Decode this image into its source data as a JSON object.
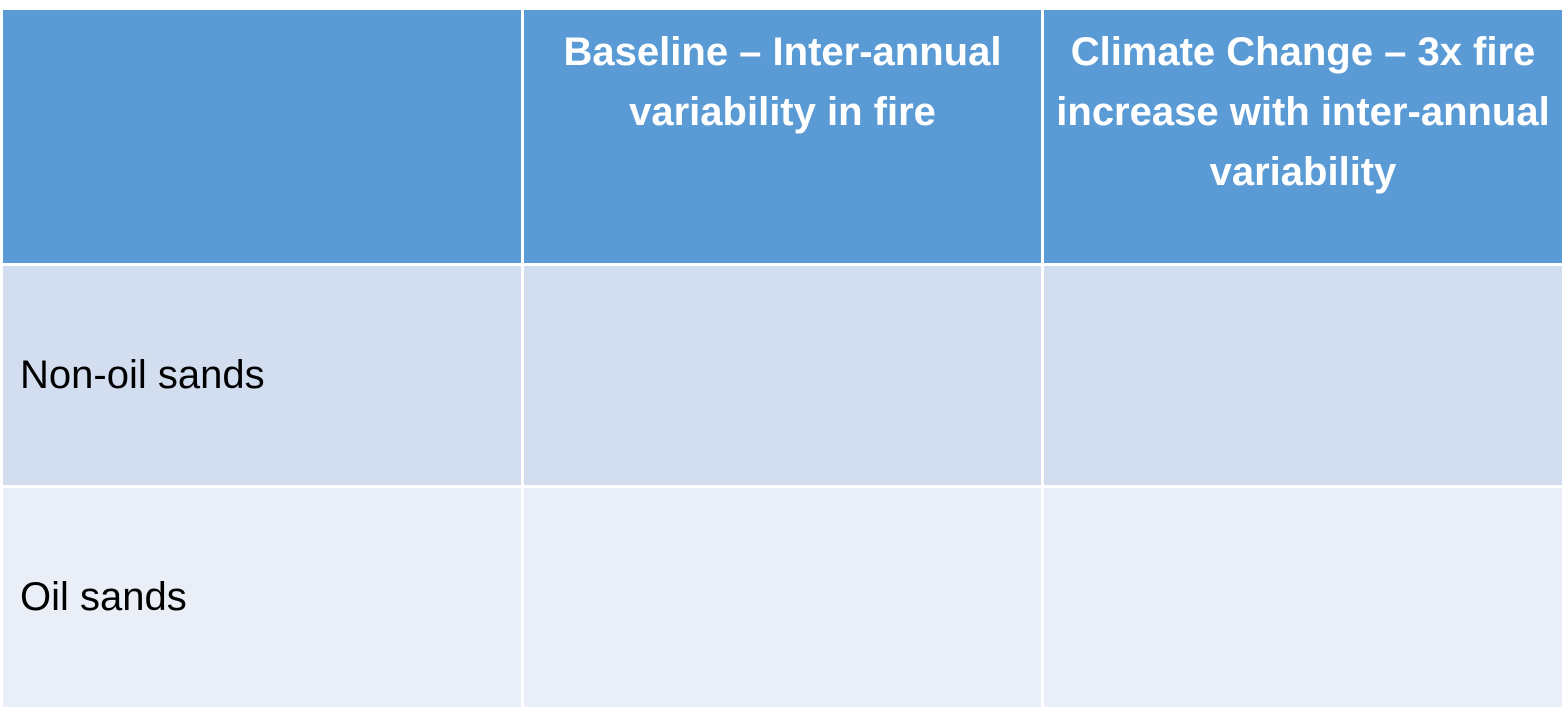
{
  "table": {
    "header": [
      "",
      "Baseline – Inter-annual variability in fire",
      "Climate Change – 3x fire increase with inter-annual variability"
    ],
    "rows": [
      {
        "label": "Non-oil sands",
        "cells": [
          "",
          ""
        ]
      },
      {
        "label": "Oil sands",
        "cells": [
          "",
          ""
        ]
      }
    ]
  },
  "colors": {
    "header_bg": "#5b9bd5",
    "header_text": "#ffffff",
    "row_odd_bg": "#d2deef",
    "row_even_bg": "#e9eef7",
    "border": "#ffffff"
  }
}
